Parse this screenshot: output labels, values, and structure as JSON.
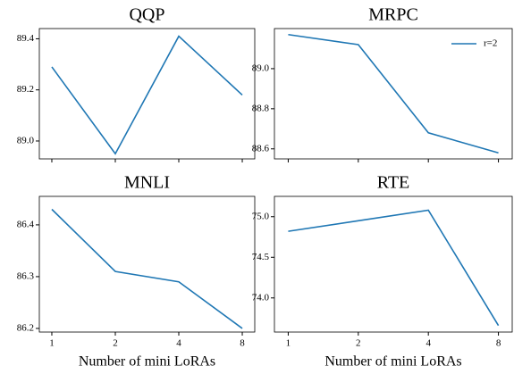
{
  "chart_data": [
    {
      "type": "line",
      "title": "QQP",
      "categories": [
        null,
        null,
        null,
        null
      ],
      "series": [
        {
          "name": "r=2",
          "color": "#1f77b4",
          "values": [
            89.29,
            88.95,
            89.41,
            89.18
          ]
        }
      ],
      "ylim": [
        88.93,
        89.44
      ],
      "yticks": [
        {
          "value": 89.0,
          "label": "89.0"
        },
        {
          "value": 89.2,
          "label": "89.2"
        },
        {
          "value": 89.4,
          "label": "89.4"
        }
      ]
    },
    {
      "type": "line",
      "title": "MRPC",
      "categories": [
        null,
        null,
        null,
        null
      ],
      "series": [
        {
          "name": "r=2",
          "color": "#1f77b4",
          "values": [
            89.17,
            89.12,
            88.68,
            88.58
          ]
        }
      ],
      "ylim": [
        88.55,
        89.2
      ],
      "yticks": [
        {
          "value": 88.6,
          "label": "88.6"
        },
        {
          "value": 88.8,
          "label": "88.8"
        },
        {
          "value": 89.0,
          "label": "89.0"
        }
      ],
      "legend": "upper right"
    },
    {
      "type": "line",
      "title": "MNLI",
      "categories": [
        "1",
        "2",
        "4",
        "8"
      ],
      "x_label": "Number of mini LoRAs",
      "series": [
        {
          "name": "r=2",
          "color": "#1f77b4",
          "values": [
            86.43,
            86.31,
            86.29,
            86.2
          ]
        }
      ],
      "ylim": [
        86.193,
        86.455
      ],
      "yticks": [
        {
          "value": 86.2,
          "label": "86.2"
        },
        {
          "value": 86.3,
          "label": "86.3"
        },
        {
          "value": 86.4,
          "label": "86.4"
        }
      ]
    },
    {
      "type": "line",
      "title": "RTE",
      "categories": [
        "1",
        "2",
        "4",
        "8"
      ],
      "x_label": "Number of mini LoRAs",
      "series": [
        {
          "name": "r=2",
          "color": "#1f77b4",
          "values": [
            74.82,
            74.95,
            75.08,
            73.66
          ]
        }
      ],
      "ylim": [
        73.58,
        75.25
      ],
      "yticks": [
        {
          "value": 74.0,
          "label": "74.0"
        },
        {
          "value": 74.5,
          "label": "74.5"
        },
        {
          "value": 75.0,
          "label": "75.0"
        }
      ]
    }
  ]
}
